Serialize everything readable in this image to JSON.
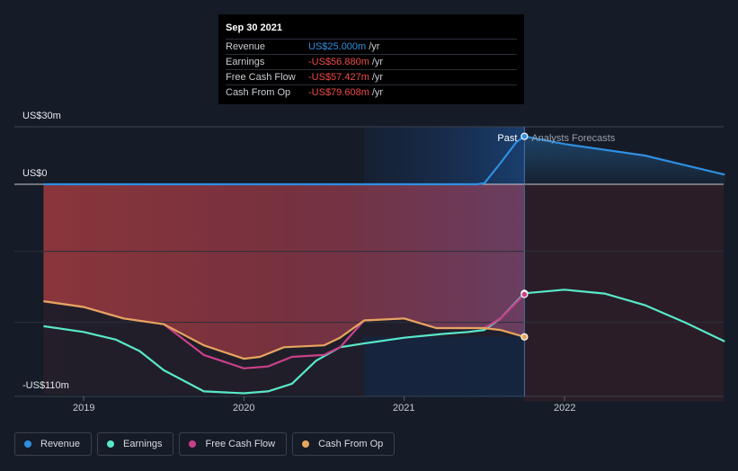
{
  "chart_data": {
    "type": "line",
    "title": "",
    "y_unit": "US$",
    "ylim": [
      -110,
      30
    ],
    "y_ticks": [
      {
        "value": 30,
        "label": "US$30m"
      },
      {
        "value": 0,
        "label": "US$0"
      },
      {
        "value": -110,
        "label": "-US$110m"
      }
    ],
    "x_ticks": [
      {
        "value": 2019,
        "label": "2019"
      },
      {
        "value": 2020,
        "label": "2020"
      },
      {
        "value": 2021,
        "label": "2021"
      },
      {
        "value": 2022,
        "label": "2022"
      }
    ],
    "xlim": [
      2018.6,
      2023.0
    ],
    "past_end": 2021.75,
    "highlight_start": 2020.75,
    "past_label": "Past",
    "forecast_label": "Analysts Forecasts",
    "series": [
      {
        "name": "Revenue",
        "color": "#2f8fe0",
        "points": [
          [
            2018.75,
            0
          ],
          [
            2019.0,
            0
          ],
          [
            2019.5,
            0
          ],
          [
            2020.0,
            0
          ],
          [
            2020.5,
            0
          ],
          [
            2021.0,
            0
          ],
          [
            2021.45,
            0
          ],
          [
            2021.5,
            0.5
          ],
          [
            2021.6,
            11
          ],
          [
            2021.7,
            22
          ],
          [
            2021.75,
            25
          ]
        ],
        "forecast": [
          [
            2021.75,
            25
          ],
          [
            2022.0,
            21
          ],
          [
            2022.5,
            15
          ],
          [
            2023.0,
            5
          ]
        ]
      },
      {
        "name": "Earnings",
        "color": "#58e8c9",
        "points": [
          [
            2018.75,
            -74
          ],
          [
            2019.0,
            -77
          ],
          [
            2019.2,
            -81
          ],
          [
            2019.35,
            -87
          ],
          [
            2019.5,
            -97
          ],
          [
            2019.75,
            -108
          ],
          [
            2020.0,
            -109
          ],
          [
            2020.15,
            -108
          ],
          [
            2020.3,
            -104
          ],
          [
            2020.45,
            -92
          ],
          [
            2020.6,
            -85
          ],
          [
            2020.75,
            -83
          ],
          [
            2021.0,
            -80
          ],
          [
            2021.25,
            -78
          ],
          [
            2021.4,
            -77
          ],
          [
            2021.5,
            -76
          ],
          [
            2021.6,
            -70
          ],
          [
            2021.75,
            -56.88
          ]
        ],
        "forecast": [
          [
            2021.75,
            -56.88
          ],
          [
            2022.0,
            -55
          ],
          [
            2022.25,
            -57
          ],
          [
            2022.5,
            -63
          ],
          [
            2022.75,
            -72
          ],
          [
            2023.0,
            -82
          ]
        ]
      },
      {
        "name": "Free Cash Flow",
        "color": "#c8418a",
        "points": [
          [
            2018.75,
            -61
          ],
          [
            2019.0,
            -64
          ],
          [
            2019.25,
            -70
          ],
          [
            2019.5,
            -73
          ],
          [
            2019.75,
            -89
          ],
          [
            2020.0,
            -96
          ],
          [
            2020.15,
            -95
          ],
          [
            2020.3,
            -90
          ],
          [
            2020.5,
            -89
          ],
          [
            2020.6,
            -85
          ],
          [
            2020.75,
            -71
          ],
          [
            2021.0,
            -70
          ],
          [
            2021.2,
            -75
          ],
          [
            2021.5,
            -75
          ],
          [
            2021.6,
            -70
          ],
          [
            2021.75,
            -57.427
          ]
        ],
        "forecast": []
      },
      {
        "name": "Cash From Op",
        "color": "#e6a55e",
        "points": [
          [
            2018.75,
            -61
          ],
          [
            2019.0,
            -64
          ],
          [
            2019.25,
            -70
          ],
          [
            2019.5,
            -73
          ],
          [
            2019.75,
            -84
          ],
          [
            2020.0,
            -91
          ],
          [
            2020.1,
            -90
          ],
          [
            2020.25,
            -85
          ],
          [
            2020.5,
            -84
          ],
          [
            2020.6,
            -80
          ],
          [
            2020.75,
            -71
          ],
          [
            2021.0,
            -70
          ],
          [
            2021.2,
            -75
          ],
          [
            2021.5,
            -75
          ],
          [
            2021.6,
            -76
          ],
          [
            2021.75,
            -79.608
          ]
        ],
        "forecast": []
      }
    ]
  },
  "tooltip": {
    "date": "Sep 30 2021",
    "rows": [
      {
        "label": "Revenue",
        "value": "US$25.000m",
        "unit": "/yr",
        "color": "#2f8fe0"
      },
      {
        "label": "Earnings",
        "value": "-US$56.880m",
        "unit": "/yr",
        "color": "#ef4848"
      },
      {
        "label": "Free Cash Flow",
        "value": "-US$57.427m",
        "unit": "/yr",
        "color": "#ef4848"
      },
      {
        "label": "Cash From Op",
        "value": "-US$79.608m",
        "unit": "/yr",
        "color": "#ef4848"
      }
    ]
  },
  "legend": [
    {
      "label": "Revenue",
      "color": "#2f8fe0"
    },
    {
      "label": "Earnings",
      "color": "#58e8c9"
    },
    {
      "label": "Free Cash Flow",
      "color": "#c8418a"
    },
    {
      "label": "Cash From Op",
      "color": "#e6a55e"
    }
  ]
}
